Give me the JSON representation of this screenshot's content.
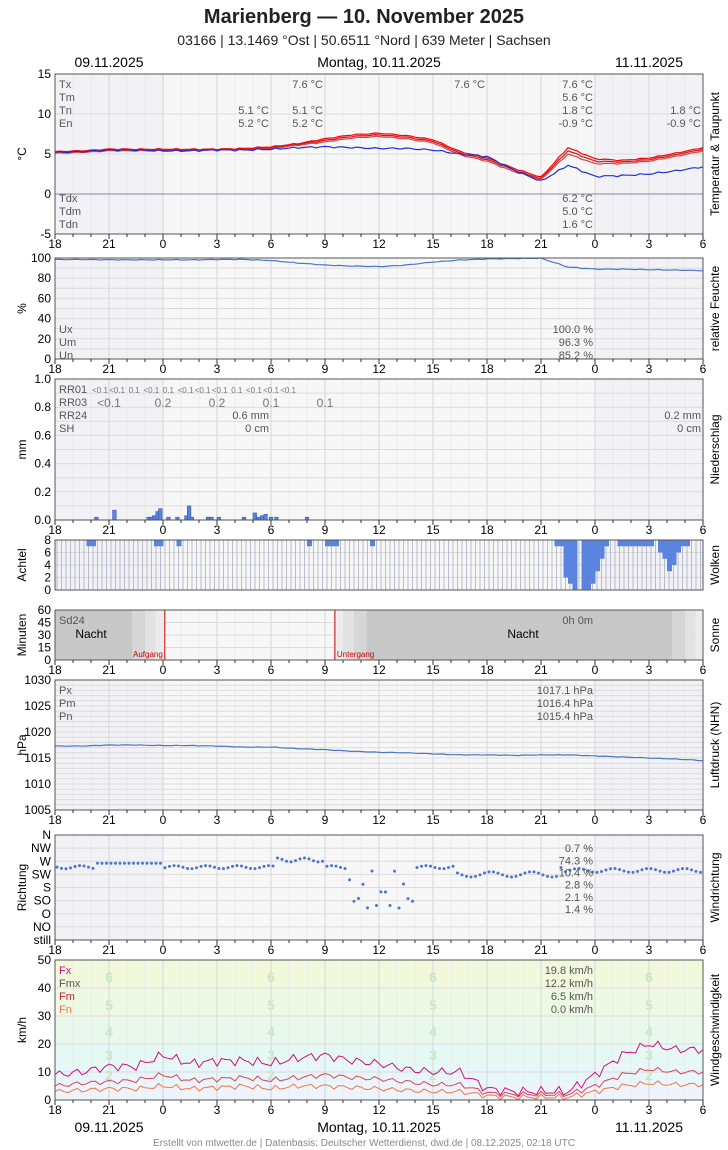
{
  "header": {
    "title": "Marienberg  —  10. November 2025",
    "subtitle": "03166  |  13.1469 °Ost  |  50.6511 °Nord  |  639 Meter  |  Sachsen",
    "date_prev": "09.11.2025",
    "date_main": "Montag, 10.11.2025",
    "date_next": "11.11.2025"
  },
  "footer": {
    "credit": "Erstellt von mtwetter.de | Datenbasis: Deutscher Wetterdienst, dwd.de | 08.12.2025, 02:18 UTC"
  },
  "x_axis": {
    "hour_labels": [
      "18",
      "21",
      "0",
      "3",
      "6",
      "9",
      "12",
      "15",
      "18",
      "21",
      "0",
      "3",
      "6"
    ]
  },
  "colors": {
    "red": "#e02020",
    "blue": "#2030d0",
    "rh": "#4a78c8",
    "bar": "#5a84e0",
    "sun": "#cc0000",
    "fx": "#cc1177",
    "fm": "#dd4455",
    "fn": "#ee7744"
  },
  "chart_data": [
    {
      "id": "temperature",
      "type": "line",
      "ylabel": "°C",
      "side_label": "Temperatur & Taupunkt",
      "ylim": [
        -5,
        15
      ],
      "yticks": [
        "15",
        "10",
        "5",
        "0",
        "-5"
      ],
      "grid": true,
      "series": [
        {
          "name": "Tx",
          "color": "#ff0000",
          "values": [
            5.3,
            5.4,
            5.6,
            5.6,
            5.6,
            5.6,
            5.6,
            5.7,
            5.9,
            6.3,
            6.9,
            7.4,
            7.6,
            7.3,
            6.8,
            5.3,
            4.5,
            3.2,
            2.1,
            5.8,
            4.4,
            4.2,
            4.5,
            5.1,
            5.8
          ]
        },
        {
          "name": "Tm",
          "color": "#cc1818",
          "values": [
            5.2,
            5.3,
            5.5,
            5.5,
            5.5,
            5.5,
            5.6,
            5.6,
            5.8,
            6.2,
            6.7,
            7.2,
            7.4,
            7.1,
            6.6,
            5.1,
            4.3,
            3.0,
            1.9,
            5.4,
            4.1,
            4.0,
            4.3,
            4.9,
            5.6
          ]
        },
        {
          "name": "Tn",
          "color": "#e04040",
          "values": [
            5.1,
            5.2,
            5.4,
            5.4,
            5.4,
            5.4,
            5.5,
            5.5,
            5.7,
            6.1,
            6.5,
            7.0,
            7.2,
            6.9,
            6.4,
            4.9,
            4.1,
            2.8,
            1.8,
            5.0,
            3.8,
            3.8,
            4.1,
            4.7,
            5.4
          ]
        },
        {
          "name": "Td",
          "color": "#2030d0",
          "values": [
            5.2,
            5.3,
            5.5,
            5.5,
            5.4,
            5.4,
            5.5,
            5.5,
            5.6,
            5.8,
            5.9,
            5.8,
            5.7,
            5.7,
            5.5,
            5.0,
            4.7,
            3.0,
            1.6,
            3.6,
            2.2,
            2.3,
            2.5,
            2.9,
            3.4
          ]
        }
      ],
      "stats_left": [
        "Tx",
        "Tm",
        "Tn",
        "En"
      ],
      "stats_left_bottom": [
        "Tdx",
        "Tdm",
        "Tdn"
      ],
      "stats_prev": {
        "Tn": "5.1 °C",
        "En": "5.2 °C"
      },
      "stats_mid": {
        "Tn": "5.1 °C",
        "En": "5.2 °C",
        "Tx": "7.6 °C"
      },
      "stats_day": {
        "Tx": "7.6 °C",
        "Tm": "5.6 °C",
        "Tn": "1.8 °C",
        "En": "-0.9 °C",
        "Tdx": "6.2 °C",
        "Tdm": "5.0 °C",
        "Tdn": "1.6 °C"
      },
      "stats_next": {
        "Tn": "1.8 °C",
        "En": "-0.9 °C"
      }
    },
    {
      "id": "humidity",
      "type": "line",
      "ylabel": "%",
      "side_label": "relative Feuchte",
      "ylim": [
        0,
        100
      ],
      "yticks": [
        "100",
        "80",
        "60",
        "40",
        "20",
        "0"
      ],
      "values": [
        98.5,
        98.5,
        98.3,
        98.2,
        98.2,
        98.2,
        98.5,
        98.6,
        97.5,
        95,
        93,
        92,
        91.5,
        93,
        96,
        98,
        99,
        99.5,
        99.8,
        91,
        89,
        89,
        88.5,
        88,
        87.5
      ],
      "stats_left": [
        "Ux",
        "Um",
        "Un"
      ],
      "stats_day": {
        "Ux": "100.0 %",
        "Um": "96.3 %",
        "Un": "85.2 %"
      }
    },
    {
      "id": "precipitation",
      "type": "bar",
      "ylabel": "mm",
      "side_label": "Niederschlag",
      "ylim": [
        0,
        1.0
      ],
      "yticks": [
        "1.0",
        "0.8",
        "0.6",
        "0.4",
        "0.2",
        "0.0"
      ],
      "bars": [
        [
          2.3,
          0.02
        ],
        [
          3.3,
          0.07
        ],
        [
          5.2,
          0.02
        ],
        [
          5.35,
          0.02
        ],
        [
          5.5,
          0.03
        ],
        [
          5.7,
          0.06
        ],
        [
          5.85,
          0.08
        ],
        [
          6.3,
          0.02
        ],
        [
          6.8,
          0.02
        ],
        [
          7.3,
          0.03
        ],
        [
          7.45,
          0.1
        ],
        [
          7.6,
          0.02
        ],
        [
          8.5,
          0.02
        ],
        [
          8.7,
          0.02
        ],
        [
          9.1,
          0.02
        ],
        [
          10.5,
          0.02
        ],
        [
          11.1,
          0.05
        ],
        [
          11.3,
          0.02
        ],
        [
          11.5,
          0.03
        ],
        [
          11.7,
          0.04
        ],
        [
          12.0,
          0.02
        ],
        [
          12.3,
          0.02
        ],
        [
          14.0,
          0.02
        ]
      ],
      "rr01_labels": [
        "<0.1",
        "<0.1",
        "0.1",
        "<0.1",
        "0.1",
        "<0.1",
        "<0.1",
        "<0.1",
        "0.1",
        "<0.1",
        "<0.1",
        "<0.1"
      ],
      "rr03_labels": [
        "<0.1",
        "0.2",
        "0.2",
        "0.1",
        "0.1"
      ],
      "stats_left": [
        "RR01",
        "RR03",
        "RR24",
        "SH"
      ],
      "stats_mid": {
        "RR24": "0.6 mm",
        "SH": "0 cm"
      },
      "stats_next": {
        "RR24": "0.2 mm",
        "SH": "0 cm"
      }
    },
    {
      "id": "clouds",
      "type": "bar",
      "ylabel": "Achtel",
      "side_label": "Wolken",
      "ylim": [
        0,
        8
      ],
      "yticks": [
        "8",
        "6",
        "4",
        "2",
        "0"
      ]
    },
    {
      "id": "sunshine",
      "type": "bar",
      "ylabel": "Minuten",
      "side_label": "Sonne",
      "ylim": [
        0,
        60
      ],
      "yticks": [
        "60",
        "45",
        "30",
        "15",
        "0"
      ],
      "night_label": "Nacht",
      "sunrise_label": "Aufgang",
      "sunset_label": "Untergang",
      "sunrise_hour": 6.1,
      "sunset_hour": 15.55,
      "stats_left": [
        "Sd24"
      ],
      "stats_day": {
        "Sd24": "0h 0m"
      }
    },
    {
      "id": "pressure",
      "type": "line",
      "ylabel": "hPa",
      "side_label": "Luftdruck (NHN)",
      "ylim": [
        1005,
        1030
      ],
      "yticks": [
        "1030",
        "1025",
        "1020",
        "1015",
        "1010",
        "1005"
      ],
      "values": [
        1017.3,
        1017.3,
        1017.5,
        1017.5,
        1017.4,
        1017.4,
        1017.3,
        1017.1,
        1017.1,
        1016.8,
        1016.6,
        1016.3,
        1016.1,
        1016.0,
        1015.8,
        1015.6,
        1015.6,
        1015.5,
        1015.6,
        1015.6,
        1015.4,
        1015.2,
        1015.0,
        1014.8,
        1014.5
      ],
      "stats_left": [
        "Px",
        "Pm",
        "Pn"
      ],
      "stats_day": {
        "Px": "1017.1 hPa",
        "Pm": "1016.4 hPa",
        "Pn": "1015.4 hPa"
      }
    },
    {
      "id": "wind_direction",
      "type": "scatter",
      "ylabel": "Richtung",
      "side_label": "Windrichtung",
      "categories": [
        "N",
        "NW",
        "W",
        "SW",
        "S",
        "SO",
        "O",
        "NO",
        "still"
      ],
      "dist_values": [
        "0.7 %",
        "74.3 %",
        "10.4 %",
        "2.8 %",
        "2.1 %",
        "1.4 %"
      ]
    },
    {
      "id": "wind_speed",
      "type": "line",
      "ylabel": "km/h",
      "side_label": "Windgeschwindigkeit",
      "ylim": [
        0,
        50
      ],
      "yticks": [
        "50",
        "40",
        "30",
        "20",
        "10",
        "0"
      ],
      "beaufort_labels": [
        "6",
        "5",
        "4",
        "3",
        "2"
      ],
      "series": [
        {
          "name": "Fx",
          "color": "#cc1177",
          "values": [
            9,
            10,
            12,
            12,
            16,
            13,
            14,
            14,
            13,
            15,
            16,
            14,
            13,
            11,
            10,
            10,
            4,
            3,
            3,
            3,
            9,
            16,
            20,
            18,
            18
          ]
        },
        {
          "name": "Fm",
          "color": "#dd4455",
          "values": [
            5,
            6,
            6.5,
            7,
            9,
            7,
            7.5,
            8,
            7,
            8,
            9,
            8,
            7.5,
            6.5,
            5.5,
            5.5,
            2.5,
            2,
            2,
            2,
            5,
            9,
            11,
            10,
            10
          ]
        },
        {
          "name": "Fn",
          "color": "#ee7744",
          "values": [
            3,
            3.5,
            4,
            4,
            5,
            4,
            4.5,
            5,
            4,
            5,
            5,
            4.5,
            4,
            3.5,
            3,
            3,
            1.5,
            1,
            1,
            1,
            3,
            5,
            6,
            5.5,
            5.5
          ]
        }
      ],
      "stats_left": [
        "Fx",
        "Fmx",
        "Fm",
        "Fn"
      ],
      "stats_day": {
        "Fx": "19.8 km/h",
        "Fmx": "12.2 km/h",
        "Fm": "6.5 km/h",
        "Fn": "0.0 km/h"
      }
    }
  ]
}
